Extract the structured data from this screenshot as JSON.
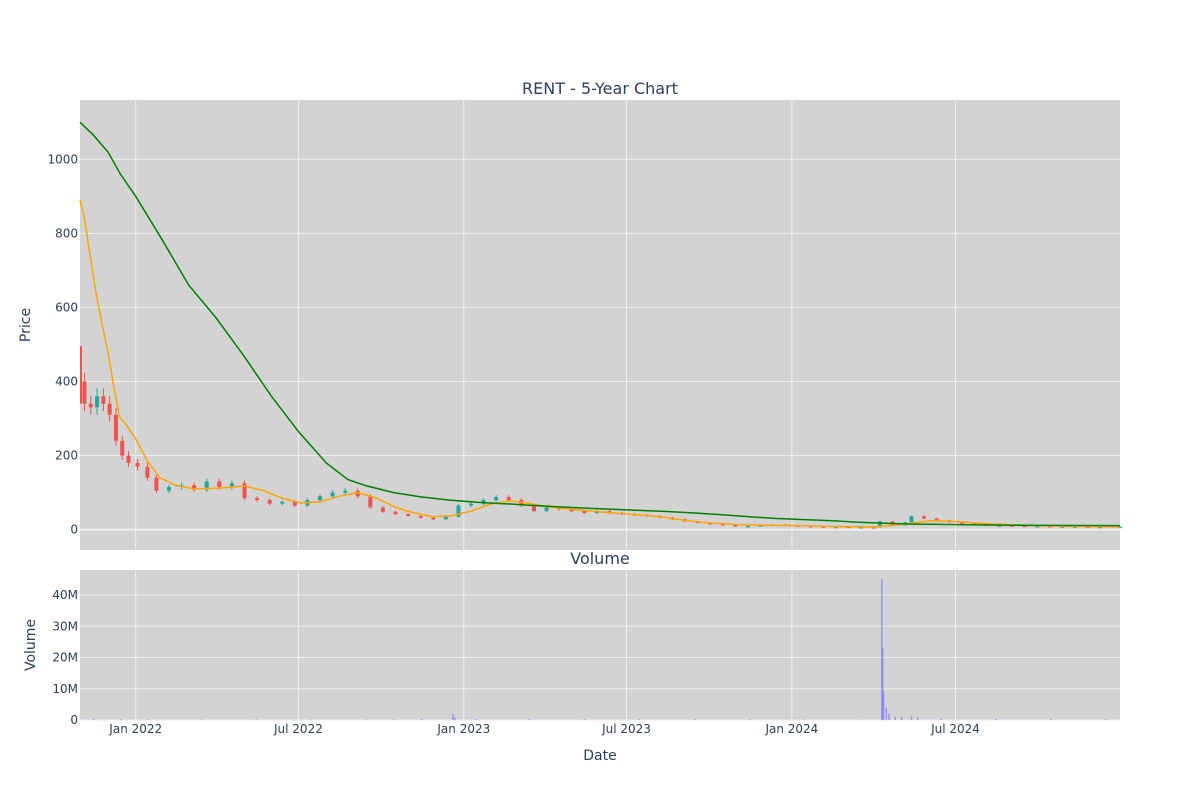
{
  "colors": {
    "panel_bg": "#d3d3d3",
    "grid": "#eeeeee",
    "candle_up": "#26a69a",
    "candle_down": "#ef5350",
    "ma_short": "#ffa500",
    "ma_long": "#008000",
    "volume": "#8080ff"
  },
  "chart_data": {
    "type": "line",
    "title": "RENT - 5-Year Chart",
    "volume_title": "Volume",
    "xlabel": "Date",
    "price_ylabel": "Price",
    "volume_ylabel": "Volume",
    "x_range": [
      "2021-10-31",
      "2024-12-31"
    ],
    "x_ticks": [
      {
        "date": "2022-01-01",
        "label": "Jan 2022"
      },
      {
        "date": "2022-07-01",
        "label": "Jul 2022"
      },
      {
        "date": "2023-01-01",
        "label": "Jan 2023"
      },
      {
        "date": "2023-07-01",
        "label": "Jul 2023"
      },
      {
        "date": "2024-01-01",
        "label": "Jan 2024"
      },
      {
        "date": "2024-07-01",
        "label": "Jul 2024"
      }
    ],
    "price_ylim": [
      -55,
      1160
    ],
    "price_ticks": [
      {
        "value": 0,
        "label": "0"
      },
      {
        "value": 200,
        "label": "200"
      },
      {
        "value": 400,
        "label": "400"
      },
      {
        "value": 600,
        "label": "600"
      },
      {
        "value": 800,
        "label": "800"
      },
      {
        "value": 1000,
        "label": "1000"
      }
    ],
    "volume_ylim": [
      0,
      48000000
    ],
    "volume_ticks": [
      {
        "value": 0,
        "label": "0"
      },
      {
        "value": 10000000,
        "label": "10M"
      },
      {
        "value": 20000000,
        "label": "20M"
      },
      {
        "value": 30000000,
        "label": "30M"
      },
      {
        "value": 40000000,
        "label": "40M"
      }
    ],
    "price_close": [
      [
        "2021-10-31",
        400
      ],
      [
        "2021-11-05",
        340
      ],
      [
        "2021-11-12",
        330
      ],
      [
        "2021-11-19",
        360
      ],
      [
        "2021-11-26",
        340
      ],
      [
        "2021-12-03",
        310
      ],
      [
        "2021-12-10",
        240
      ],
      [
        "2021-12-17",
        200
      ],
      [
        "2021-12-24",
        180
      ],
      [
        "2022-01-03",
        170
      ],
      [
        "2022-01-14",
        140
      ],
      [
        "2022-01-24",
        105
      ],
      [
        "2022-02-07",
        115
      ],
      [
        "2022-02-21",
        120
      ],
      [
        "2022-03-07",
        108
      ],
      [
        "2022-03-21",
        130
      ],
      [
        "2022-04-04",
        115
      ],
      [
        "2022-04-18",
        125
      ],
      [
        "2022-05-02",
        85
      ],
      [
        "2022-05-16",
        80
      ],
      [
        "2022-05-30",
        70
      ],
      [
        "2022-06-13",
        75
      ],
      [
        "2022-06-27",
        65
      ],
      [
        "2022-07-11",
        80
      ],
      [
        "2022-07-25",
        90
      ],
      [
        "2022-08-08",
        100
      ],
      [
        "2022-08-22",
        105
      ],
      [
        "2022-09-05",
        90
      ],
      [
        "2022-09-19",
        60
      ],
      [
        "2022-10-03",
        48
      ],
      [
        "2022-10-17",
        42
      ],
      [
        "2022-10-31",
        37
      ],
      [
        "2022-11-14",
        32
      ],
      [
        "2022-11-28",
        28
      ],
      [
        "2022-12-12",
        35
      ],
      [
        "2022-12-26",
        65
      ],
      [
        "2023-01-09",
        70
      ],
      [
        "2023-01-23",
        80
      ],
      [
        "2023-02-06",
        88
      ],
      [
        "2023-02-20",
        80
      ],
      [
        "2023-03-06",
        65
      ],
      [
        "2023-03-20",
        50
      ],
      [
        "2023-04-03",
        60
      ],
      [
        "2023-04-17",
        55
      ],
      [
        "2023-05-01",
        50
      ],
      [
        "2023-05-15",
        45
      ],
      [
        "2023-05-29",
        50
      ],
      [
        "2023-06-12",
        45
      ],
      [
        "2023-06-26",
        42
      ],
      [
        "2023-07-10",
        40
      ],
      [
        "2023-07-24",
        37
      ],
      [
        "2023-08-07",
        33
      ],
      [
        "2023-08-21",
        28
      ],
      [
        "2023-09-04",
        22
      ],
      [
        "2023-09-18",
        18
      ],
      [
        "2023-10-02",
        15
      ],
      [
        "2023-10-16",
        12
      ],
      [
        "2023-10-30",
        10
      ],
      [
        "2023-11-13",
        10
      ],
      [
        "2023-11-27",
        12
      ],
      [
        "2023-12-11",
        14
      ],
      [
        "2023-12-25",
        12
      ],
      [
        "2024-01-08",
        10
      ],
      [
        "2024-01-22",
        9
      ],
      [
        "2024-02-05",
        8
      ],
      [
        "2024-02-19",
        8
      ],
      [
        "2024-03-04",
        7
      ],
      [
        "2024-03-18",
        7
      ],
      [
        "2024-04-01",
        6
      ],
      [
        "2024-04-08",
        22
      ],
      [
        "2024-04-22",
        12
      ],
      [
        "2024-05-06",
        20
      ],
      [
        "2024-05-13",
        36
      ],
      [
        "2024-05-27",
        30
      ],
      [
        "2024-06-10",
        25
      ],
      [
        "2024-06-24",
        20
      ],
      [
        "2024-07-08",
        16
      ],
      [
        "2024-07-22",
        14
      ],
      [
        "2024-08-05",
        12
      ],
      [
        "2024-08-19",
        12
      ],
      [
        "2024-09-02",
        11
      ],
      [
        "2024-09-16",
        10
      ],
      [
        "2024-09-30",
        10
      ],
      [
        "2024-10-14",
        9
      ],
      [
        "2024-10-28",
        9
      ],
      [
        "2024-11-11",
        9
      ],
      [
        "2024-11-25",
        8
      ],
      [
        "2024-12-09",
        8
      ],
      [
        "2024-12-31",
        8
      ]
    ],
    "series": [
      {
        "color": "#ffa500",
        "points": [
          [
            "2021-10-31",
            890
          ],
          [
            "2021-11-05",
            840
          ],
          [
            "2021-11-10",
            760
          ],
          [
            "2021-11-17",
            650
          ],
          [
            "2021-11-24",
            560
          ],
          [
            "2021-12-01",
            480
          ],
          [
            "2021-12-08",
            380
          ],
          [
            "2021-12-14",
            305
          ],
          [
            "2021-12-21",
            285
          ],
          [
            "2022-01-01",
            245
          ],
          [
            "2022-01-14",
            185
          ],
          [
            "2022-01-28",
            140
          ],
          [
            "2022-02-14",
            120
          ],
          [
            "2022-03-07",
            110
          ],
          [
            "2022-04-04",
            112
          ],
          [
            "2022-05-02",
            118
          ],
          [
            "2022-05-23",
            105
          ],
          [
            "2022-06-13",
            85
          ],
          [
            "2022-07-04",
            72
          ],
          [
            "2022-07-25",
            75
          ],
          [
            "2022-08-15",
            90
          ],
          [
            "2022-09-05",
            100
          ],
          [
            "2022-09-26",
            85
          ],
          [
            "2022-10-17",
            60
          ],
          [
            "2022-11-07",
            45
          ],
          [
            "2022-11-28",
            35
          ],
          [
            "2022-12-19",
            38
          ],
          [
            "2023-01-09",
            50
          ],
          [
            "2023-01-30",
            68
          ],
          [
            "2023-02-20",
            78
          ],
          [
            "2023-03-13",
            72
          ],
          [
            "2023-04-03",
            62
          ],
          [
            "2023-05-01",
            55
          ],
          [
            "2023-06-01",
            48
          ],
          [
            "2023-07-03",
            42
          ],
          [
            "2023-08-07",
            35
          ],
          [
            "2023-09-04",
            25
          ],
          [
            "2023-10-02",
            18
          ],
          [
            "2023-11-06",
            13
          ],
          [
            "2023-12-04",
            12
          ],
          [
            "2024-01-08",
            11
          ],
          [
            "2024-02-05",
            9
          ],
          [
            "2024-03-04",
            8
          ],
          [
            "2024-04-01",
            7
          ],
          [
            "2024-05-06",
            15
          ],
          [
            "2024-06-03",
            24
          ],
          [
            "2024-07-01",
            22
          ],
          [
            "2024-08-05",
            16
          ],
          [
            "2024-09-02",
            13
          ],
          [
            "2024-10-07",
            10
          ],
          [
            "2024-11-04",
            9
          ],
          [
            "2024-12-31",
            8
          ]
        ]
      },
      {
        "color": "#008000",
        "points": [
          [
            "2021-10-31",
            1100
          ],
          [
            "2021-11-15",
            1065
          ],
          [
            "2021-12-01",
            1020
          ],
          [
            "2021-12-15",
            960
          ],
          [
            "2022-01-01",
            900
          ],
          [
            "2022-01-31",
            780
          ],
          [
            "2022-03-01",
            660
          ],
          [
            "2022-04-01",
            570
          ],
          [
            "2022-05-01",
            470
          ],
          [
            "2022-06-01",
            360
          ],
          [
            "2022-07-01",
            265
          ],
          [
            "2022-08-01",
            180
          ],
          [
            "2022-08-25",
            135
          ],
          [
            "2022-09-15",
            118
          ],
          [
            "2022-10-15",
            100
          ],
          [
            "2022-11-15",
            88
          ],
          [
            "2022-12-15",
            80
          ],
          [
            "2023-01-15",
            74
          ],
          [
            "2023-02-15",
            70
          ],
          [
            "2023-03-15",
            66
          ],
          [
            "2023-04-15",
            62
          ],
          [
            "2023-05-15",
            58
          ],
          [
            "2023-06-15",
            55
          ],
          [
            "2023-07-15",
            52
          ],
          [
            "2023-08-15",
            49
          ],
          [
            "2023-09-15",
            45
          ],
          [
            "2023-10-15",
            40
          ],
          [
            "2023-11-15",
            35
          ],
          [
            "2023-12-15",
            30
          ],
          [
            "2024-01-15",
            27
          ],
          [
            "2024-02-15",
            24
          ],
          [
            "2024-03-15",
            20
          ],
          [
            "2024-04-15",
            17
          ],
          [
            "2024-05-15",
            15
          ],
          [
            "2024-06-15",
            14
          ],
          [
            "2024-07-15",
            13
          ],
          [
            "2024-09-01",
            12
          ],
          [
            "2024-12-31",
            11
          ]
        ]
      }
    ],
    "volume": [
      [
        "2021-11-15",
        300000
      ],
      [
        "2021-12-15",
        250000
      ],
      [
        "2022-01-15",
        200000
      ],
      [
        "2022-03-15",
        150000
      ],
      [
        "2022-05-15",
        200000
      ],
      [
        "2022-07-15",
        150000
      ],
      [
        "2022-09-15",
        150000
      ],
      [
        "2022-10-15",
        200000
      ],
      [
        "2022-11-15",
        300000
      ],
      [
        "2022-12-20",
        2000000
      ],
      [
        "2022-12-22",
        800000
      ],
      [
        "2023-01-15",
        400000
      ],
      [
        "2023-03-15",
        300000
      ],
      [
        "2023-05-15",
        250000
      ],
      [
        "2023-07-15",
        200000
      ],
      [
        "2023-09-15",
        250000
      ],
      [
        "2023-11-15",
        200000
      ],
      [
        "2024-01-15",
        150000
      ],
      [
        "2024-03-15",
        150000
      ],
      [
        "2024-04-10",
        45000000
      ],
      [
        "2024-04-11",
        23000000
      ],
      [
        "2024-04-12",
        9000000
      ],
      [
        "2024-04-15",
        4000000
      ],
      [
        "2024-04-18",
        2000000
      ],
      [
        "2024-04-25",
        1000000
      ],
      [
        "2024-05-02",
        900000
      ],
      [
        "2024-05-13",
        1200000
      ],
      [
        "2024-05-20",
        800000
      ],
      [
        "2024-06-15",
        400000
      ],
      [
        "2024-08-15",
        300000
      ],
      [
        "2024-10-15",
        250000
      ],
      [
        "2024-12-15",
        250000
      ]
    ]
  }
}
